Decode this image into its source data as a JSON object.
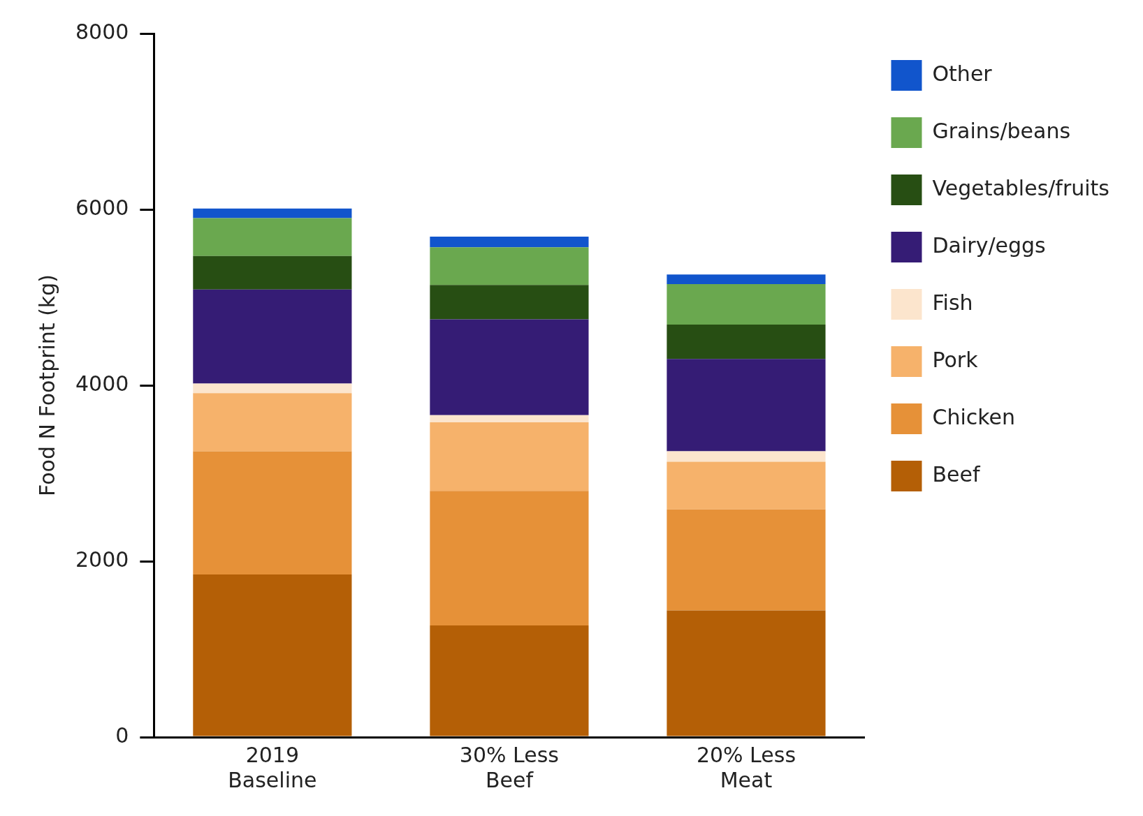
{
  "chart_data": {
    "type": "bar",
    "stacked": true,
    "ylabel": "Food N Footprint (kg)",
    "categories": [
      "2019 Baseline",
      "30% Less Beef",
      "20% Less Meat"
    ],
    "series": [
      {
        "name": "Beef",
        "color": "#b45f06",
        "values": [
          1850,
          1270,
          1440
        ]
      },
      {
        "name": "Chicken",
        "color": "#e69138",
        "values": [
          1400,
          1530,
          1150
        ]
      },
      {
        "name": "Pork",
        "color": "#f6b26b",
        "values": [
          660,
          780,
          540
        ]
      },
      {
        "name": "Fish",
        "color": "#fce5cd",
        "values": [
          110,
          80,
          120
        ]
      },
      {
        "name": "Dairy/eggs",
        "color": "#351c75",
        "values": [
          1070,
          1090,
          1050
        ]
      },
      {
        "name": "Vegetables/fruits",
        "color": "#274e13",
        "values": [
          380,
          390,
          390
        ]
      },
      {
        "name": "Grains/beans",
        "color": "#6aa84f",
        "values": [
          430,
          430,
          460
        ]
      },
      {
        "name": "Other",
        "color": "#1155cc",
        "values": [
          110,
          120,
          110
        ]
      }
    ],
    "ylim": [
      0,
      8000
    ],
    "yticks": [
      0,
      2000,
      4000,
      6000,
      8000
    ],
    "grid": false,
    "legend": "right"
  }
}
